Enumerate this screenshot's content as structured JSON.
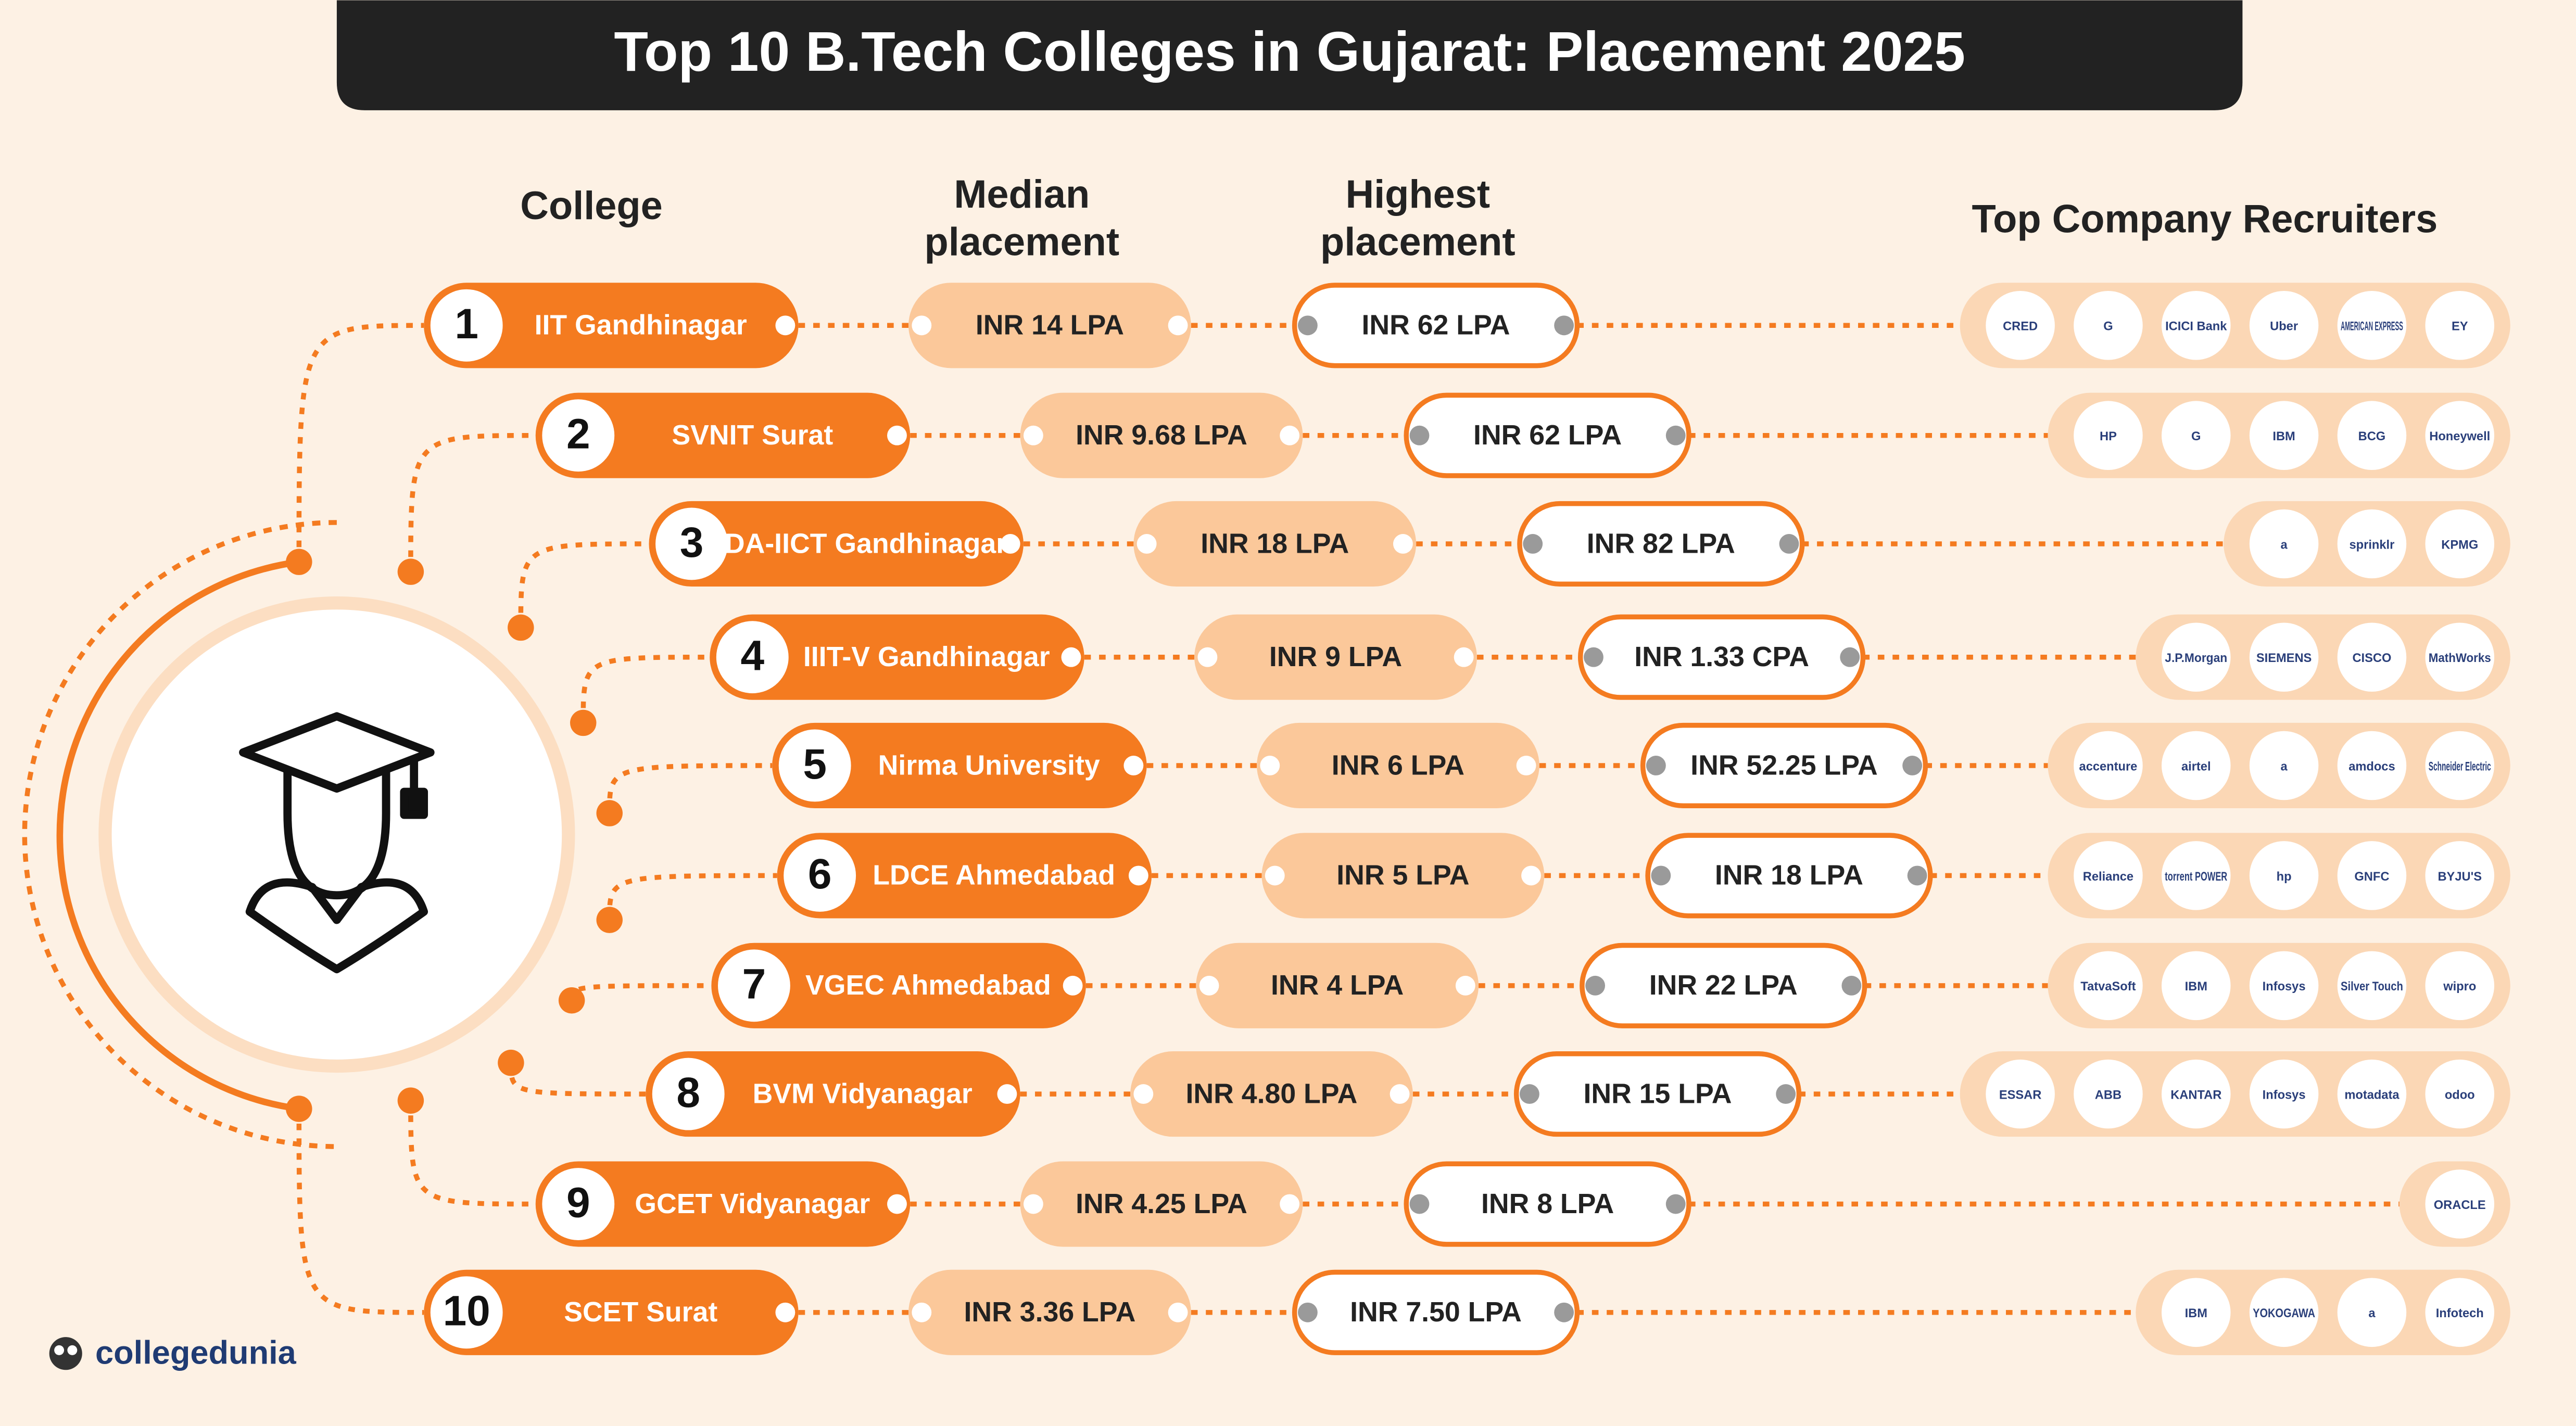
{
  "title": "Top 10  B.Tech Colleges in Gujarat: Placement 2025",
  "headers": {
    "college": "College",
    "median": [
      "Median",
      "placement"
    ],
    "highest": [
      "Highest",
      "placement"
    ],
    "recruiters": "Top Company Recruiters"
  },
  "rows": [
    {
      "rank": "1",
      "college": "IIT Gandhinagar",
      "median": "INR 14 LPA",
      "highest": "INR 62 LPA",
      "recruiters": [
        "CRED",
        "G",
        "ICICI Bank",
        "Uber",
        "AMERICAN EXPRESS",
        "EY"
      ]
    },
    {
      "rank": "2",
      "college": "SVNIT Surat",
      "median": "INR 9.68 LPA",
      "highest": "INR 62 LPA",
      "recruiters": [
        "HP",
        "G",
        "IBM",
        "BCG",
        "Honeywell"
      ]
    },
    {
      "rank": "3",
      "college": "DA-IICT Gandhinagar",
      "median": "INR 18 LPA",
      "highest": "INR 82 LPA",
      "recruiters": [
        "a",
        "sprinklr",
        "KPMG"
      ]
    },
    {
      "rank": "4",
      "college": "IIIT-V Gandhinagar",
      "median": "INR 9 LPA",
      "highest": "INR 1.33 CPA",
      "recruiters": [
        "J.P.Morgan",
        "SIEMENS",
        "CISCO",
        "MathWorks"
      ]
    },
    {
      "rank": "5",
      "college": "Nirma University",
      "median": "INR 6 LPA",
      "highest": "INR 52.25 LPA",
      "recruiters": [
        "accenture",
        "airtel",
        "a",
        "amdocs",
        "Schneider Electric"
      ]
    },
    {
      "rank": "6",
      "college": "LDCE Ahmedabad",
      "median": "INR 5 LPA",
      "highest": "INR 18 LPA",
      "recruiters": [
        "Reliance",
        "torrent POWER",
        "hp",
        "GNFC",
        "BYJU'S"
      ]
    },
    {
      "rank": "7",
      "college": "VGEC Ahmedabad",
      "median": "INR 4 LPA",
      "highest": "INR 22 LPA",
      "recruiters": [
        "TatvaSoft",
        "IBM",
        "Infosys",
        "Silver Touch",
        "wipro"
      ]
    },
    {
      "rank": "8",
      "college": "BVM Vidyanagar",
      "median": "INR 4.80 LPA",
      "highest": "INR 15 LPA",
      "recruiters": [
        "ESSAR",
        "ABB",
        "KANTAR",
        "Infosys",
        "motadata",
        "odoo"
      ]
    },
    {
      "rank": "9",
      "college": "GCET Vidyanagar",
      "median": "INR 4.25 LPA",
      "highest": "INR 8 LPA",
      "recruiters": [
        "ORACLE"
      ]
    },
    {
      "rank": "10",
      "college": "SCET Surat",
      "median": "INR 3.36 LPA",
      "highest": "INR 7.50 LPA",
      "recruiters": [
        "IBM",
        "YOKOGAWA",
        "a",
        "Infotech"
      ]
    }
  ],
  "brand": "collegedunia"
}
